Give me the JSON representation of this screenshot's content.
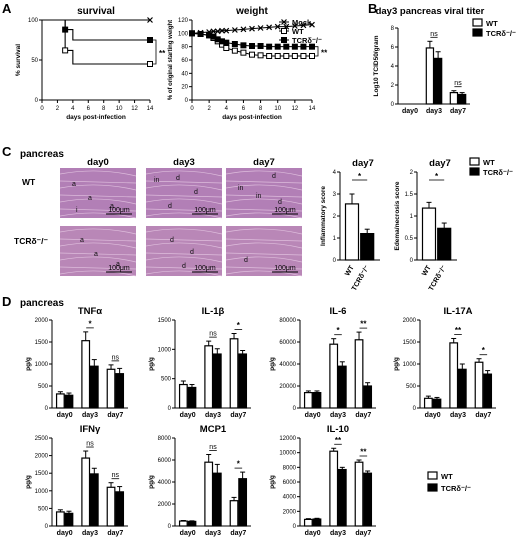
{
  "panels": {
    "A": "A",
    "B": "B",
    "C": "C",
    "D": "D"
  },
  "colors": {
    "wt_fill": "#ffffff",
    "tcr_fill": "#000000",
    "axis": "#000000",
    "wt_tissue": "#b27fb6",
    "tcr_tissue": "#b987b7"
  },
  "legend": {
    "wt": "WT",
    "tcr": "TCRδ⁻/⁻",
    "mock": "Mock"
  },
  "panel_c": {
    "title": "pancreas",
    "cols": [
      "day0",
      "day3",
      "day7"
    ],
    "rows": [
      "WT",
      "TCRδ⁻/⁻"
    ],
    "scale": "100μm",
    "labels": {
      "wt_day0": [
        "a",
        "a",
        "a",
        "i"
      ],
      "wt_day3": [
        "in",
        "d",
        "d",
        "d"
      ],
      "wt_day7": [
        "d",
        "in",
        "in",
        "d"
      ],
      "tcr_day0": [
        "a",
        "a",
        "a"
      ],
      "tcr_day3": [
        "d",
        "d",
        "d"
      ],
      "tcr_day7": [
        "d"
      ]
    }
  },
  "panel_d_title": "pancreas",
  "chart_data": [
    {
      "id": "A-survival",
      "type": "line",
      "title": "survival",
      "xlabel": "days post-infection",
      "ylabel": "% survival",
      "xlim": [
        0,
        14
      ],
      "ylim": [
        0,
        100
      ],
      "xticks": [
        0,
        2,
        4,
        6,
        8,
        10,
        12,
        14
      ],
      "yticks": [
        0,
        50,
        100
      ],
      "series": [
        {
          "key": "mock",
          "marker": "x",
          "x": [
            0,
            14
          ],
          "y": [
            100,
            100
          ]
        },
        {
          "key": "wt",
          "marker": "square-open",
          "x": [
            0,
            3,
            4,
            14
          ],
          "y": [
            100,
            62,
            45,
            45
          ]
        },
        {
          "key": "tcr",
          "marker": "square-filled",
          "x": [
            0,
            3,
            4,
            14
          ],
          "y": [
            100,
            88,
            75,
            75
          ]
        }
      ],
      "annotations": [
        "**"
      ]
    },
    {
      "id": "A-weight",
      "type": "line",
      "title": "weight",
      "xlabel": "days post-infection",
      "ylabel": "% of original starting weight",
      "xlim": [
        0,
        14
      ],
      "ylim": [
        0,
        120
      ],
      "xticks": [
        0,
        2,
        4,
        6,
        8,
        10,
        12,
        14
      ],
      "yticks": [
        0,
        20,
        40,
        60,
        80,
        100,
        120
      ],
      "x": [
        0,
        1,
        2,
        2.5,
        3,
        3.5,
        4,
        5,
        6,
        7,
        8,
        9,
        10,
        11,
        12,
        13,
        14
      ],
      "series": [
        {
          "key": "mock",
          "y": [
            100,
            101,
            102,
            103,
            103,
            104,
            104,
            105,
            106,
            107,
            108,
            109,
            110,
            110,
            111,
            112,
            113
          ]
        },
        {
          "key": "wt",
          "y": [
            100,
            99,
            97,
            93,
            88,
            83,
            78,
            74,
            71,
            68,
            67,
            66,
            66,
            66,
            66,
            66,
            66
          ]
        },
        {
          "key": "tcr",
          "y": [
            100,
            99,
            97,
            95,
            91,
            88,
            86,
            84,
            82,
            81,
            81,
            80,
            80,
            80,
            80,
            80,
            80
          ]
        }
      ],
      "annotations": [
        "**"
      ]
    },
    {
      "id": "B-viral-titer",
      "type": "bar",
      "title": "day3 pancreas viral titer",
      "ylabel": "Log10 TCID50/gram",
      "ylim": [
        0,
        8
      ],
      "yticks": [
        0,
        2,
        4,
        6,
        8
      ],
      "categories": [
        "day0",
        "day3",
        "day7"
      ],
      "series": [
        {
          "key": "wt",
          "values": [
            0,
            5.9,
            1.2
          ],
          "err": [
            0,
            0.7,
            0.2
          ]
        },
        {
          "key": "tcr",
          "values": [
            0,
            4.8,
            1.0
          ],
          "err": [
            0,
            0.7,
            0.2
          ]
        }
      ],
      "annotations": [
        "ns",
        "ns"
      ]
    },
    {
      "id": "C-inflammatory",
      "type": "bar",
      "title": "day7",
      "ylabel": "Inflammatory score",
      "ylim": [
        0,
        4
      ],
      "yticks": [
        0,
        1,
        2,
        3,
        4
      ],
      "categories": [
        "WT",
        "TCRδ⁻/⁻"
      ],
      "values": [
        2.55,
        1.2
      ],
      "err": [
        0.45,
        0.2
      ],
      "annotations": [
        "*"
      ]
    },
    {
      "id": "C-edema",
      "type": "bar",
      "title": "day7",
      "ylabel": "Edema/necrosis score",
      "ylim": [
        0,
        2.0
      ],
      "yticks": [
        0.0,
        0.5,
        1.0,
        1.5,
        2.0
      ],
      "categories": [
        "WT",
        "TCRδ⁻/⁻"
      ],
      "values": [
        1.18,
        0.72
      ],
      "err": [
        0.13,
        0.12
      ],
      "annotations": [
        "*"
      ]
    },
    {
      "id": "D-TNFa",
      "type": "bar",
      "title": "TNFα",
      "ylabel": "pg/g",
      "ylim": [
        0,
        2000
      ],
      "yticks": [
        0,
        500,
        1000,
        1500,
        2000
      ],
      "categories": [
        "day0",
        "day3",
        "day7"
      ],
      "series": [
        {
          "key": "wt",
          "values": [
            320,
            1530,
            880
          ],
          "err": [
            50,
            200,
            100
          ]
        },
        {
          "key": "tcr",
          "values": [
            290,
            950,
            780
          ],
          "err": [
            50,
            150,
            120
          ]
        }
      ],
      "annotations": [
        "*",
        "ns"
      ]
    },
    {
      "id": "D-IL1b",
      "type": "bar",
      "title": "IL-1β",
      "ylabel": "pg/g",
      "ylim": [
        0,
        1500
      ],
      "yticks": [
        0,
        500,
        1000,
        1500
      ],
      "categories": [
        "day0",
        "day3",
        "day7"
      ],
      "series": [
        {
          "key": "wt",
          "values": [
            400,
            1060,
            1180
          ],
          "err": [
            60,
            80,
            90
          ]
        },
        {
          "key": "tcr",
          "values": [
            350,
            920,
            920
          ],
          "err": [
            50,
            90,
            60
          ]
        }
      ],
      "annotations": [
        "ns",
        "*"
      ]
    },
    {
      "id": "D-IL6",
      "type": "bar",
      "title": "IL-6",
      "ylabel": "pg/g",
      "ylim": [
        0,
        80000
      ],
      "yticks": [
        0,
        20000,
        40000,
        60000,
        80000
      ],
      "categories": [
        "day0",
        "day3",
        "day7"
      ],
      "series": [
        {
          "key": "wt",
          "values": [
            14000,
            58000,
            62000
          ],
          "err": [
            1500,
            5000,
            7000
          ]
        },
        {
          "key": "tcr",
          "values": [
            14000,
            38000,
            20000
          ],
          "err": [
            1500,
            4000,
            3000
          ]
        }
      ],
      "annotations": [
        "*",
        "**"
      ]
    },
    {
      "id": "D-IL17A",
      "type": "bar",
      "title": "IL-17A",
      "ylabel": "pg/g",
      "ylim": [
        0,
        2000
      ],
      "yticks": [
        0,
        500,
        1000,
        1500,
        2000
      ],
      "categories": [
        "day0",
        "day3",
        "day7"
      ],
      "series": [
        {
          "key": "wt",
          "values": [
            220,
            1480,
            1040
          ],
          "err": [
            50,
            100,
            80
          ]
        },
        {
          "key": "tcr",
          "values": [
            200,
            880,
            770
          ],
          "err": [
            40,
            120,
            80
          ]
        }
      ],
      "annotations": [
        "**",
        "*"
      ]
    },
    {
      "id": "D-IFNg",
      "type": "bar",
      "title": "IFNγ",
      "ylabel": "pg/g",
      "ylim": [
        0,
        2500
      ],
      "yticks": [
        0,
        500,
        1000,
        1500,
        2000,
        2500
      ],
      "categories": [
        "day0",
        "day3",
        "day7"
      ],
      "series": [
        {
          "key": "wt",
          "values": [
            400,
            1930,
            1100
          ],
          "err": [
            60,
            200,
            130
          ]
        },
        {
          "key": "tcr",
          "values": [
            360,
            1480,
            970
          ],
          "err": [
            60,
            160,
            150
          ]
        }
      ],
      "annotations": [
        "ns",
        "ns"
      ]
    },
    {
      "id": "D-MCP1",
      "type": "bar",
      "title": "MCP1",
      "ylabel": "pg/g",
      "ylim": [
        0,
        8000
      ],
      "yticks": [
        0,
        2000,
        4000,
        6000,
        8000
      ],
      "categories": [
        "day0",
        "day3",
        "day7"
      ],
      "series": [
        {
          "key": "wt",
          "values": [
            450,
            5800,
            2300
          ],
          "err": [
            50,
            700,
            300
          ]
        },
        {
          "key": "tcr",
          "values": [
            420,
            4800,
            4300
          ],
          "err": [
            50,
            800,
            600
          ]
        }
      ],
      "annotations": [
        "ns",
        "*"
      ]
    },
    {
      "id": "D-IL10",
      "type": "bar",
      "title": "IL-10",
      "ylabel": "pg/g",
      "ylim": [
        0,
        12000
      ],
      "yticks": [
        0,
        2000,
        4000,
        6000,
        8000,
        10000,
        12000
      ],
      "categories": [
        "day0",
        "day3",
        "day7"
      ],
      "series": [
        {
          "key": "wt",
          "values": [
            900,
            10200,
            8700
          ],
          "err": [
            100,
            400,
            300
          ]
        },
        {
          "key": "tcr",
          "values": [
            950,
            7700,
            7200
          ],
          "err": [
            100,
            300,
            300
          ]
        }
      ],
      "annotations": [
        "**",
        "**"
      ]
    }
  ]
}
